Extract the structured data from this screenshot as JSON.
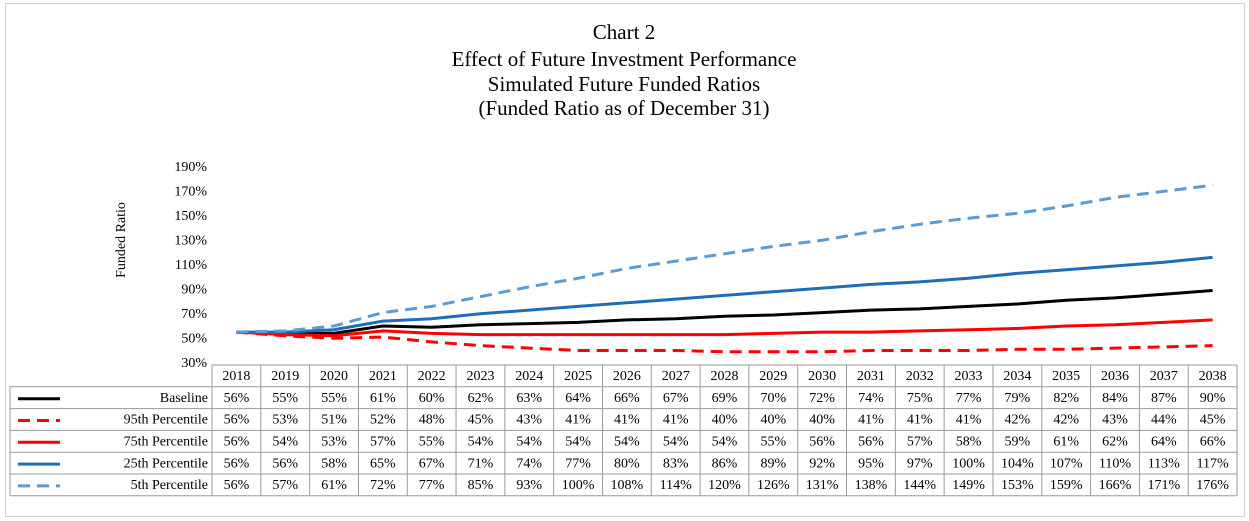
{
  "chart_data": {
    "type": "line",
    "title": "Chart 2",
    "subtitle": [
      "Effect of Future Investment Performance",
      "Simulated Future Funded Ratios",
      "(Funded Ratio as of December 31)"
    ],
    "y_label": "Funded Ratio",
    "categories": [
      "2018",
      "2019",
      "2020",
      "2021",
      "2022",
      "2023",
      "2024",
      "2025",
      "2026",
      "2027",
      "2028",
      "2029",
      "2030",
      "2031",
      "2032",
      "2033",
      "2034",
      "2035",
      "2036",
      "2037",
      "2038"
    ],
    "ylim": [
      30,
      190
    ],
    "yticks": [
      {
        "value": 30,
        "label": "30%"
      },
      {
        "value": 50,
        "label": "50%"
      },
      {
        "value": 70,
        "label": "70%"
      },
      {
        "value": 90,
        "label": "90%"
      },
      {
        "value": 110,
        "label": "110%"
      },
      {
        "value": 130,
        "label": "130%"
      },
      {
        "value": 150,
        "label": "150%"
      },
      {
        "value": 170,
        "label": "170%"
      },
      {
        "value": 190,
        "label": "190%"
      }
    ],
    "grid": false,
    "series": [
      {
        "name": "Baseline",
        "color": "#000000",
        "line_style": "solid",
        "values": [
          56,
          55,
          55,
          61,
          60,
          62,
          63,
          64,
          66,
          67,
          69,
          70,
          72,
          74,
          75,
          77,
          79,
          82,
          84,
          87,
          90
        ],
        "value_labels": [
          "56%",
          "55%",
          "55%",
          "61%",
          "60%",
          "62%",
          "63%",
          "64%",
          "66%",
          "67%",
          "69%",
          "70%",
          "72%",
          "74%",
          "75%",
          "77%",
          "79%",
          "82%",
          "84%",
          "87%",
          "90%"
        ]
      },
      {
        "name": "95th Percentile",
        "color": "#ff0000",
        "line_style": "dashed",
        "values": [
          56,
          53,
          51,
          52,
          48,
          45,
          43,
          41,
          41,
          41,
          40,
          40,
          40,
          41,
          41,
          41,
          42,
          42,
          43,
          44,
          45
        ],
        "value_labels": [
          "56%",
          "53%",
          "51%",
          "52%",
          "48%",
          "45%",
          "43%",
          "41%",
          "41%",
          "41%",
          "40%",
          "40%",
          "40%",
          "41%",
          "41%",
          "41%",
          "42%",
          "42%",
          "43%",
          "44%",
          "45%"
        ]
      },
      {
        "name": "75th Percentile",
        "color": "#ff0000",
        "line_style": "solid",
        "values": [
          56,
          54,
          53,
          57,
          55,
          54,
          54,
          54,
          54,
          54,
          54,
          55,
          56,
          56,
          57,
          58,
          59,
          61,
          62,
          64,
          66
        ],
        "value_labels": [
          "56%",
          "54%",
          "53%",
          "57%",
          "55%",
          "54%",
          "54%",
          "54%",
          "54%",
          "54%",
          "54%",
          "55%",
          "56%",
          "56%",
          "57%",
          "58%",
          "59%",
          "61%",
          "62%",
          "64%",
          "66%"
        ]
      },
      {
        "name": "25th Percentile",
        "color": "#1f6eb5",
        "line_style": "solid",
        "values": [
          56,
          56,
          58,
          65,
          67,
          71,
          74,
          77,
          80,
          83,
          86,
          89,
          92,
          95,
          97,
          100,
          104,
          107,
          110,
          113,
          117
        ],
        "value_labels": [
          "56%",
          "56%",
          "58%",
          "65%",
          "67%",
          "71%",
          "74%",
          "77%",
          "80%",
          "83%",
          "86%",
          "89%",
          "92%",
          "95%",
          "97%",
          "100%",
          "104%",
          "107%",
          "110%",
          "113%",
          "117%"
        ]
      },
      {
        "name": "5th Percentile",
        "color": "#5b9bd5",
        "line_style": "dashed",
        "values": [
          56,
          57,
          61,
          72,
          77,
          85,
          93,
          100,
          108,
          114,
          120,
          126,
          131,
          138,
          144,
          149,
          153,
          159,
          166,
          171,
          176
        ],
        "value_labels": [
          "56%",
          "57%",
          "61%",
          "72%",
          "77%",
          "85%",
          "93%",
          "100%",
          "108%",
          "114%",
          "120%",
          "126%",
          "131%",
          "138%",
          "144%",
          "149%",
          "153%",
          "159%",
          "166%",
          "171%",
          "176%"
        ]
      }
    ]
  }
}
